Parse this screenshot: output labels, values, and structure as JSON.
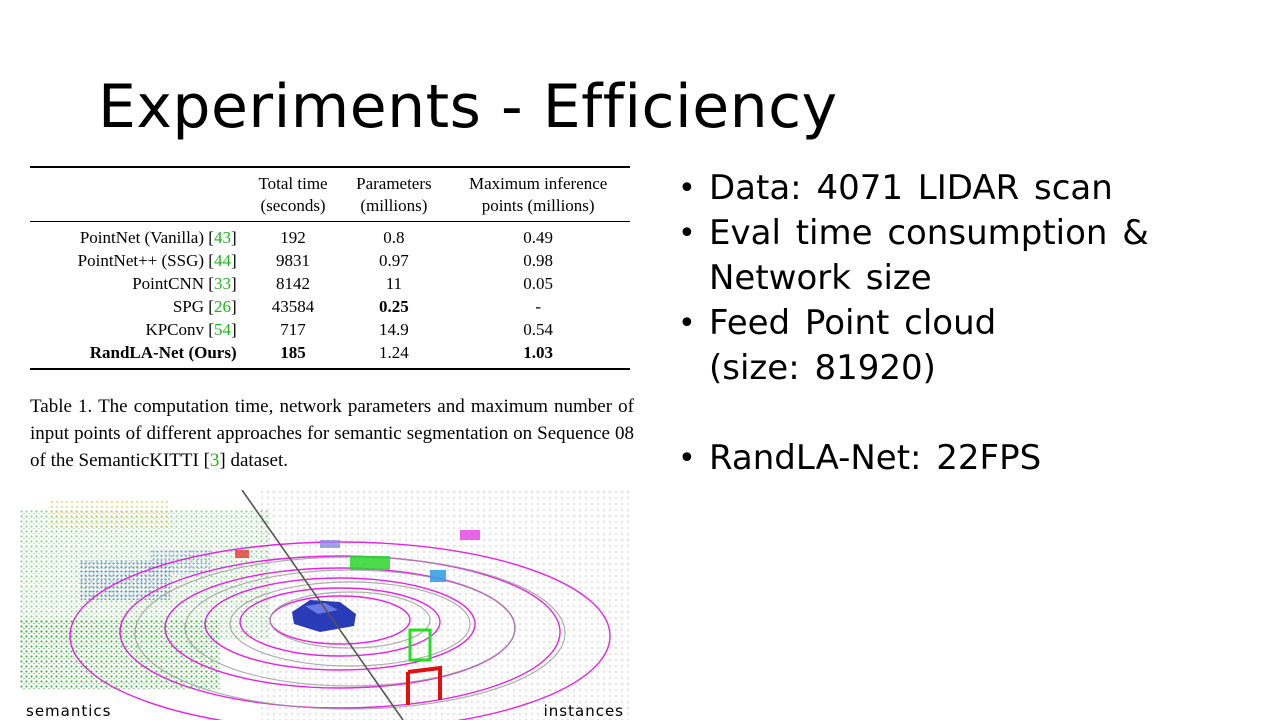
{
  "slide": {
    "title": "Experiments - Efficiency"
  },
  "table": {
    "headers": [
      "",
      [
        "Total time",
        "(seconds)"
      ],
      [
        "Parameters",
        "(millions)"
      ],
      [
        "Maximum inference",
        "points (millions)"
      ]
    ],
    "rows": [
      {
        "method": "PointNet (Vanilla) [",
        "cite": "43",
        "time": "192",
        "params": "0.8",
        "points": "0.49"
      },
      {
        "method": "PointNet++ (SSG) [",
        "cite": "44",
        "time": "9831",
        "params": "0.97",
        "points": "0.98"
      },
      {
        "method": "PointCNN [",
        "cite": "33",
        "time": "8142",
        "params": "11",
        "points": "0.05"
      },
      {
        "method": "SPG [",
        "cite": "26",
        "time": "43584",
        "params": "0.25",
        "points": "-"
      },
      {
        "method": "KPConv [",
        "cite": "54",
        "time": "717",
        "params": "14.9",
        "points": "0.54"
      },
      {
        "method": "RandLA-Net (Ours)",
        "cite": "",
        "time": "185",
        "params": "1.24",
        "points": "1.03"
      }
    ]
  },
  "caption": {
    "before": "Table 1. The computation time, network parameters and maximum number of input points of different approaches for semantic segmentation on Sequence 08 of the SemanticKITTI [",
    "cite": "3",
    "after": "] dataset."
  },
  "figure": {
    "left_label": "semantics",
    "right_label": "instances"
  },
  "bullets": {
    "b1": "Data: 4071 LIDAR scan",
    "b2_line1": "Eval time consumption &",
    "b2_line2": "Network size",
    "b3_line1": "Feed Point cloud",
    "b3_line2": "(size: 81920)",
    "b4": "RandLA-Net: 22FPS"
  },
  "colors": {
    "citation": "#18b818",
    "road": "#e000e0",
    "vegetation": "#3aa83a",
    "car": "#3a4fd0",
    "instance_red": "#e01010"
  }
}
